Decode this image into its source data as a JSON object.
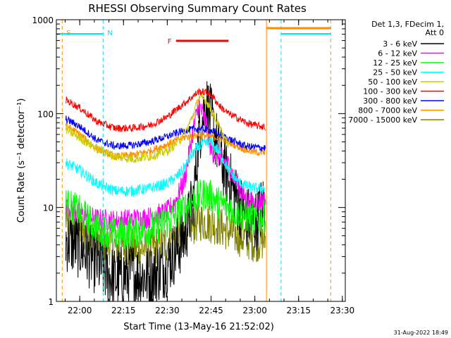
{
  "chart_data": {
    "type": "line",
    "title": "RHESSI Observing Summary Count Rates",
    "xlabel": "Start Time (13-May-16 21:52:02)",
    "ylabel": "Count Rate (s⁻¹ detector⁻¹)",
    "y_scale": "log",
    "ylim": [
      1,
      1000
    ],
    "xlim": [
      "21:52",
      "23:31"
    ],
    "x_ticks": [
      "22:00",
      "22:15",
      "22:30",
      "22:45",
      "23:00",
      "23:15",
      "23:30"
    ],
    "y_ticks": [
      "1",
      "10",
      "100",
      "1000"
    ],
    "grid": false,
    "legend_position": "right",
    "legend_header": [
      "Det 1,3, FDecim 1,",
      "Att 0"
    ],
    "footer_date": "31-Aug-2022 18:49",
    "annotations": [
      {
        "label": "S",
        "time": "21:54",
        "color": "#ff8c00"
      },
      {
        "label": "N",
        "time": "22:08",
        "color": "#00e5ee"
      },
      {
        "label": "F",
        "time_start": "22:33",
        "time_end": "22:51",
        "color": "#ff0000"
      }
    ],
    "attenuator_markers": [
      {
        "time": "23:04",
        "color": "#ff8c00"
      },
      {
        "time": "23:09",
        "color": "#00e5ee"
      },
      {
        "time": "23:26",
        "color": "#ff8c00"
      }
    ],
    "x_hours": [
      21.92,
      22.0,
      22.1,
      22.2,
      22.3,
      22.4,
      22.5,
      22.55,
      22.6,
      22.65,
      22.68,
      22.72,
      22.75,
      22.8,
      22.85,
      22.9,
      22.95,
      23.0,
      23.06
    ],
    "series": [
      {
        "name": "3 - 6 keV",
        "color": "#000000",
        "values": [
          4.5,
          3.8,
          2.5,
          1.7,
          2.0,
          1.8,
          2.5,
          3.5,
          5,
          12,
          60,
          130,
          90,
          35,
          20,
          12,
          8,
          7,
          12
        ]
      },
      {
        "name": "6 - 12 keV",
        "color": "#ff00ff",
        "values": [
          10,
          8.5,
          7.5,
          7.2,
          7.5,
          7.8,
          9,
          12,
          20,
          70,
          125,
          80,
          40,
          35,
          28,
          18,
          12,
          11,
          12
        ]
      },
      {
        "name": "12 - 25 keV",
        "color": "#00ff00",
        "values": [
          11,
          9,
          6,
          5.2,
          5.5,
          6,
          7,
          8.5,
          10,
          12,
          13,
          14,
          13,
          11,
          10,
          9,
          8,
          7.5,
          8
        ]
      },
      {
        "name": "25 - 50 keV",
        "color": "#00ffff",
        "values": [
          30,
          25,
          18,
          15,
          15,
          16,
          18,
          21,
          27,
          38,
          45,
          48,
          50,
          38,
          25,
          19,
          17,
          16,
          16
        ]
      },
      {
        "name": "50 - 100 keV",
        "color": "#cccc00",
        "values": [
          68,
          55,
          42,
          35,
          33,
          35,
          40,
          48,
          60,
          100,
          150,
          140,
          110,
          70,
          45,
          null,
          null,
          null,
          null
        ]
      },
      {
        "name": "100 - 300 keV",
        "color": "#ff0000",
        "values": [
          140,
          115,
          82,
          70,
          70,
          75,
          92,
          110,
          130,
          155,
          172,
          168,
          160,
          120,
          100,
          90,
          80,
          75,
          72
        ]
      },
      {
        "name": "300 - 800 keV",
        "color": "#0000ff",
        "values": [
          88,
          73,
          52,
          45,
          46,
          50,
          57,
          62,
          66,
          68,
          70,
          68,
          66,
          60,
          54,
          49,
          45,
          44,
          43
        ]
      },
      {
        "name": "800 - 7000 keV",
        "color": "#ff8c00",
        "values": [
          76,
          60,
          42,
          35,
          36,
          40,
          47,
          52,
          56,
          58,
          59,
          58,
          57,
          55,
          50,
          45,
          41,
          39,
          38
        ]
      },
      {
        "name": "7000 - 15000 keV",
        "color": "#808000",
        "values": [
          7.5,
          5.8,
          4.5,
          3.8,
          3.6,
          3.7,
          4.2,
          5,
          5.8,
          6.5,
          7.2,
          7,
          6.8,
          6.3,
          5.5,
          5,
          4.6,
          4.3,
          4.5
        ]
      }
    ]
  }
}
